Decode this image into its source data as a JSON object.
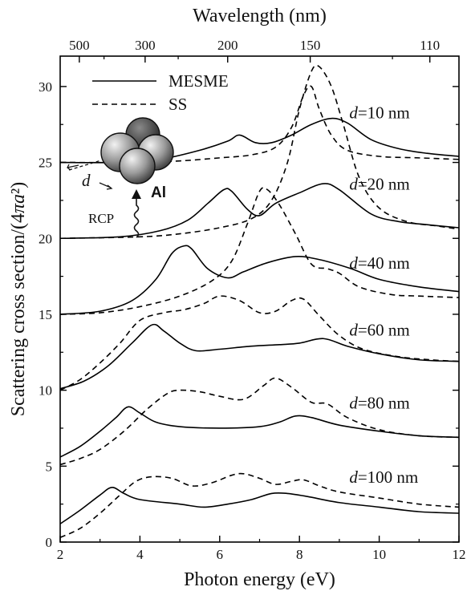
{
  "chart_data": {
    "type": "line",
    "xlabel": "Photon energy (eV)",
    "ylabel": "Scattering cross section/(4πa²)",
    "top_axis_label": "Wavelength (nm)",
    "xlim": [
      2,
      12
    ],
    "ylim": [
      0,
      32
    ],
    "x_ticks": [
      2,
      4,
      6,
      8,
      10,
      12
    ],
    "y_ticks": [
      0,
      5,
      10,
      15,
      20,
      25,
      30
    ],
    "top_ticks": [
      {
        "label": "500",
        "energy": 2.48
      },
      {
        "label": "300",
        "energy": 4.13
      },
      {
        "label": "200",
        "energy": 6.2
      },
      {
        "label": "150",
        "energy": 8.27
      },
      {
        "label": "110",
        "energy": 11.27
      }
    ],
    "legend": {
      "placement": "top-left",
      "entries": [
        {
          "label": "MESME",
          "style": "solid"
        },
        {
          "label": "SS",
          "style": "dashed"
        }
      ]
    },
    "inset": {
      "material_label": "Al",
      "spacing_label": "d",
      "source_label": "RCP"
    },
    "series": [
      {
        "label": "d=10 nm",
        "label_value": "=10 nm",
        "label_x": 9.25,
        "label_y": 27.9,
        "style": "solid",
        "points": [
          [
            2,
            25
          ],
          [
            3.5,
            25
          ],
          [
            4.5,
            25.2
          ],
          [
            5.5,
            25.8
          ],
          [
            6.2,
            26.4
          ],
          [
            6.5,
            26.8
          ],
          [
            6.9,
            26.3
          ],
          [
            7.3,
            26.3
          ],
          [
            7.8,
            26.8
          ],
          [
            8.3,
            27.5
          ],
          [
            8.8,
            27.9
          ],
          [
            9.2,
            27.6
          ],
          [
            9.8,
            26.5
          ],
          [
            10.5,
            25.9
          ],
          [
            11.2,
            25.6
          ],
          [
            12,
            25.4
          ]
        ]
      },
      {
        "label": "d=10 nm",
        "label_value": "=10 nm",
        "label_x": 9.25,
        "label_y": 27.9,
        "style": "dashed",
        "points": [
          [
            2,
            25
          ],
          [
            4,
            25
          ],
          [
            5,
            25.1
          ],
          [
            6,
            25.3
          ],
          [
            6.8,
            25.5
          ],
          [
            7.4,
            26
          ],
          [
            7.8,
            27.3
          ],
          [
            8.1,
            29.4
          ],
          [
            8.3,
            30
          ],
          [
            8.5,
            28.5
          ],
          [
            8.8,
            26.8
          ],
          [
            9.2,
            25.8
          ],
          [
            10,
            25.4
          ],
          [
            11,
            25.3
          ],
          [
            12,
            25.2
          ]
        ]
      },
      {
        "label": "d=20 nm",
        "label_value": "=20 nm",
        "label_x": 9.25,
        "label_y": 23.2,
        "style": "solid",
        "points": [
          [
            2,
            20
          ],
          [
            3.5,
            20.1
          ],
          [
            4.5,
            20.5
          ],
          [
            5.2,
            21.2
          ],
          [
            5.7,
            22.3
          ],
          [
            6.1,
            23.2
          ],
          [
            6.3,
            23.1
          ],
          [
            6.7,
            21.9
          ],
          [
            7,
            21.5
          ],
          [
            7.4,
            22.3
          ],
          [
            8,
            23
          ],
          [
            8.6,
            23.6
          ],
          [
            9,
            23.2
          ],
          [
            9.8,
            21.6
          ],
          [
            10.5,
            21.1
          ],
          [
            11.2,
            20.9
          ],
          [
            12,
            20.7
          ]
        ]
      },
      {
        "label": "d=20 nm",
        "label_value": "=20 nm",
        "label_x": 9.25,
        "label_y": 23.2,
        "style": "dashed",
        "points": [
          [
            2,
            20
          ],
          [
            4,
            20.1
          ],
          [
            5,
            20.3
          ],
          [
            6,
            20.7
          ],
          [
            6.8,
            21.3
          ],
          [
            7.3,
            22.5
          ],
          [
            7.7,
            25
          ],
          [
            8,
            28.5
          ],
          [
            8.3,
            31
          ],
          [
            8.5,
            31.3
          ],
          [
            8.8,
            30
          ],
          [
            9.1,
            27.5
          ],
          [
            9.5,
            24
          ],
          [
            10,
            22
          ],
          [
            10.7,
            21.1
          ],
          [
            11.5,
            20.8
          ],
          [
            12,
            20.6
          ]
        ]
      },
      {
        "label": "d=40 nm",
        "label_value": "=40 nm",
        "label_x": 9.25,
        "label_y": 18.0,
        "style": "solid",
        "points": [
          [
            2,
            15
          ],
          [
            3,
            15.2
          ],
          [
            3.8,
            15.9
          ],
          [
            4.4,
            17.3
          ],
          [
            4.8,
            19
          ],
          [
            5.1,
            19.5
          ],
          [
            5.3,
            19.3
          ],
          [
            5.7,
            18
          ],
          [
            6.2,
            17.4
          ],
          [
            6.6,
            17.8
          ],
          [
            7.2,
            18.4
          ],
          [
            7.9,
            18.8
          ],
          [
            8.5,
            18.6
          ],
          [
            9.3,
            18
          ],
          [
            10,
            17.3
          ],
          [
            11,
            16.8
          ],
          [
            12,
            16.5
          ]
        ]
      },
      {
        "label": "d=40 nm",
        "label_value": "=40 nm",
        "label_x": 9.25,
        "label_y": 18.0,
        "style": "dashed",
        "points": [
          [
            2,
            15
          ],
          [
            3,
            15.1
          ],
          [
            4,
            15.5
          ],
          [
            5,
            16.2
          ],
          [
            5.8,
            17.2
          ],
          [
            6.3,
            18.5
          ],
          [
            6.7,
            21
          ],
          [
            7,
            23.1
          ],
          [
            7.2,
            23.2
          ],
          [
            7.5,
            22.2
          ],
          [
            7.9,
            20.3
          ],
          [
            8.3,
            18.3
          ],
          [
            8.7,
            18
          ],
          [
            9,
            17.7
          ],
          [
            9.5,
            16.8
          ],
          [
            10.3,
            16.3
          ],
          [
            11,
            16.2
          ],
          [
            12,
            16.1
          ]
        ]
      },
      {
        "label": "d=60 nm",
        "label_value": "=60 nm",
        "label_x": 9.25,
        "label_y": 13.6,
        "style": "solid",
        "points": [
          [
            2,
            10.1
          ],
          [
            2.6,
            10.6
          ],
          [
            3.2,
            11.6
          ],
          [
            3.8,
            13.1
          ],
          [
            4.3,
            14.3
          ],
          [
            4.6,
            13.9
          ],
          [
            5,
            13.1
          ],
          [
            5.4,
            12.6
          ],
          [
            6,
            12.7
          ],
          [
            6.8,
            12.9
          ],
          [
            7.5,
            13
          ],
          [
            8,
            13.1
          ],
          [
            8.6,
            13.4
          ],
          [
            9.2,
            12.9
          ],
          [
            10,
            12.4
          ],
          [
            11,
            12
          ],
          [
            12,
            11.9
          ]
        ]
      },
      {
        "label": "d=60 nm",
        "label_value": "=60 nm",
        "label_x": 9.25,
        "label_y": 13.6,
        "style": "dashed",
        "points": [
          [
            2,
            10
          ],
          [
            2.5,
            10.7
          ],
          [
            3,
            11.8
          ],
          [
            3.5,
            13.1
          ],
          [
            4,
            14.6
          ],
          [
            4.6,
            15.1
          ],
          [
            5.1,
            15.3
          ],
          [
            5.6,
            15.7
          ],
          [
            6,
            16.2
          ],
          [
            6.5,
            15.9
          ],
          [
            7,
            15.1
          ],
          [
            7.4,
            15.2
          ],
          [
            7.8,
            15.9
          ],
          [
            8.1,
            16
          ],
          [
            8.5,
            14.9
          ],
          [
            9,
            13.6
          ],
          [
            9.6,
            12.7
          ],
          [
            10.5,
            12.2
          ],
          [
            11.3,
            12
          ],
          [
            12,
            11.9
          ]
        ]
      },
      {
        "label": "d=80 nm",
        "label_value": "=80 nm",
        "label_x": 9.25,
        "label_y": 8.8,
        "style": "solid",
        "points": [
          [
            2,
            5.6
          ],
          [
            2.5,
            6.3
          ],
          [
            3,
            7.3
          ],
          [
            3.4,
            8.2
          ],
          [
            3.7,
            8.9
          ],
          [
            4,
            8.5
          ],
          [
            4.4,
            7.9
          ],
          [
            5,
            7.6
          ],
          [
            6,
            7.5
          ],
          [
            7,
            7.6
          ],
          [
            7.5,
            7.9
          ],
          [
            7.9,
            8.3
          ],
          [
            8.3,
            8.2
          ],
          [
            9,
            7.7
          ],
          [
            10,
            7.3
          ],
          [
            11,
            7
          ],
          [
            12,
            6.9
          ]
        ]
      },
      {
        "label": "d=80 nm",
        "label_value": "=80 nm",
        "label_x": 9.25,
        "label_y": 8.8,
        "style": "dashed",
        "points": [
          [
            2,
            5.1
          ],
          [
            2.5,
            5.5
          ],
          [
            3,
            6.1
          ],
          [
            3.6,
            7.3
          ],
          [
            4.2,
            8.8
          ],
          [
            4.7,
            9.8
          ],
          [
            5,
            10
          ],
          [
            5.5,
            9.9
          ],
          [
            6,
            9.6
          ],
          [
            6.6,
            9.4
          ],
          [
            7.1,
            10.3
          ],
          [
            7.4,
            10.8
          ],
          [
            7.8,
            10.2
          ],
          [
            8.3,
            9.2
          ],
          [
            8.7,
            9.1
          ],
          [
            9.2,
            8.2
          ],
          [
            10,
            7.4
          ],
          [
            11,
            7
          ],
          [
            12,
            6.9
          ]
        ]
      },
      {
        "label": "d=100 nm",
        "label_value": "=100 nm",
        "label_x": 9.25,
        "label_y": 3.9,
        "style": "solid",
        "points": [
          [
            2,
            1.2
          ],
          [
            2.5,
            2.1
          ],
          [
            3,
            3.1
          ],
          [
            3.3,
            3.6
          ],
          [
            3.6,
            3.2
          ],
          [
            4,
            2.8
          ],
          [
            5,
            2.5
          ],
          [
            5.6,
            2.3
          ],
          [
            6.2,
            2.5
          ],
          [
            6.8,
            2.8
          ],
          [
            7.3,
            3.2
          ],
          [
            7.7,
            3.2
          ],
          [
            8.2,
            3
          ],
          [
            9,
            2.6
          ],
          [
            10,
            2.3
          ],
          [
            11,
            2
          ],
          [
            12,
            1.9
          ]
        ]
      },
      {
        "label": "d=100 nm",
        "label_value": "=100 nm",
        "label_x": 9.25,
        "label_y": 3.9,
        "style": "dashed",
        "points": [
          [
            2,
            0.3
          ],
          [
            2.5,
            0.9
          ],
          [
            3,
            1.9
          ],
          [
            3.5,
            3.1
          ],
          [
            3.9,
            4
          ],
          [
            4.3,
            4.3
          ],
          [
            4.8,
            4.2
          ],
          [
            5.3,
            3.7
          ],
          [
            5.8,
            3.9
          ],
          [
            6.3,
            4.4
          ],
          [
            6.6,
            4.5
          ],
          [
            7,
            4.2
          ],
          [
            7.4,
            3.8
          ],
          [
            7.8,
            4
          ],
          [
            8.1,
            4.1
          ],
          [
            8.5,
            3.7
          ],
          [
            9,
            3.3
          ],
          [
            10,
            2.9
          ],
          [
            11,
            2.5
          ],
          [
            12,
            2.3
          ]
        ]
      }
    ]
  }
}
